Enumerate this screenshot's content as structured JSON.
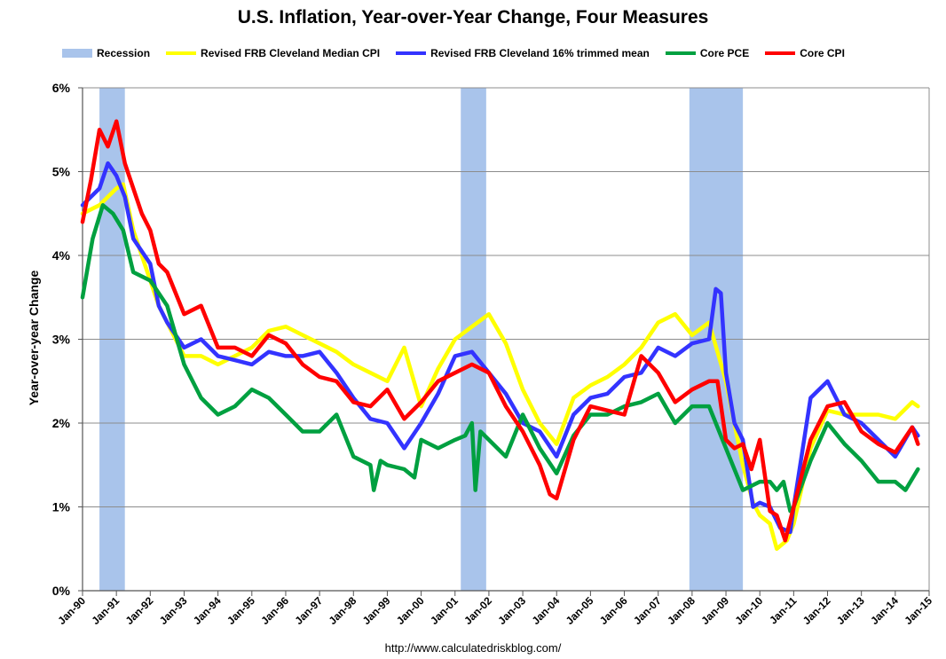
{
  "chart_data": {
    "type": "line",
    "title": "U.S. Inflation, Year-over-Year Change, Four Measures",
    "ylabel": "Year-over-year Change",
    "xlabel": "",
    "source": "http://www.calculatedriskblog.com/",
    "x_range": [
      1990.0,
      2015.0
    ],
    "ylim": [
      0,
      6
    ],
    "y_ticks": [
      "0%",
      "1%",
      "2%",
      "3%",
      "4%",
      "5%",
      "6%"
    ],
    "x_ticks": [
      "Jan-90",
      "Jan-91",
      "Jan-92",
      "Jan-93",
      "Jan-94",
      "Jan-95",
      "Jan-96",
      "Jan-97",
      "Jan-98",
      "Jan-99",
      "Jan-00",
      "Jan-01",
      "Jan-02",
      "Jan-03",
      "Jan-04",
      "Jan-05",
      "Jan-06",
      "Jan-07",
      "Jan-08",
      "Jan-09",
      "Jan-10",
      "Jan-11",
      "Jan-12",
      "Jan-13",
      "Jan-14",
      "Jan-15"
    ],
    "grid": true,
    "legend_position": "top",
    "recession": {
      "name": "Recession",
      "color": "#a9c4eb",
      "periods": [
        [
          1990.5,
          1991.25
        ],
        [
          2001.17,
          2001.92
        ],
        [
          2007.92,
          2009.5
        ]
      ]
    },
    "series": [
      {
        "name": "Revised FRB Cleveland Median CPI",
        "color": "#ffff00",
        "x": [
          1990.0,
          1990.5,
          1991.0,
          1991.2,
          1991.5,
          1992.0,
          1992.25,
          1992.5,
          1992.75,
          1993.0,
          1993.5,
          1994.0,
          1994.5,
          1995.0,
          1995.5,
          1996.0,
          1996.5,
          1997.0,
          1997.5,
          1998.0,
          1998.5,
          1999.0,
          1999.5,
          2000.0,
          2000.5,
          2001.0,
          2001.5,
          2002.0,
          2002.5,
          2003.0,
          2003.5,
          2004.0,
          2004.5,
          2005.0,
          2005.5,
          2006.0,
          2006.5,
          2007.0,
          2007.5,
          2008.0,
          2008.5,
          2009.0,
          2009.5,
          2009.8,
          2010.0,
          2010.3,
          2010.5,
          2010.8,
          2011.0,
          2011.5,
          2012.0,
          2012.5,
          2013.0,
          2013.5,
          2014.0,
          2014.5,
          2014.67
        ],
        "y": [
          4.5,
          4.6,
          4.8,
          4.85,
          4.3,
          3.7,
          3.4,
          3.2,
          3.0,
          2.8,
          2.8,
          2.7,
          2.8,
          2.9,
          3.1,
          3.15,
          3.05,
          2.95,
          2.85,
          2.7,
          2.6,
          2.5,
          2.9,
          2.2,
          2.65,
          3.0,
          3.15,
          3.3,
          2.95,
          2.4,
          2.0,
          1.75,
          2.3,
          2.45,
          2.55,
          2.7,
          2.9,
          3.2,
          3.3,
          3.05,
          3.2,
          2.5,
          1.5,
          1.05,
          0.9,
          0.8,
          0.5,
          0.6,
          0.8,
          1.7,
          2.15,
          2.1,
          2.1,
          2.1,
          2.05,
          2.25,
          2.2
        ]
      },
      {
        "name": "Revised FRB Cleveland 16% trimmed mean",
        "color": "#3333ff",
        "x": [
          1990.0,
          1990.5,
          1990.75,
          1991.0,
          1991.25,
          1991.5,
          1992.0,
          1992.25,
          1992.5,
          1993.0,
          1993.5,
          1994.0,
          1994.5,
          1995.0,
          1995.5,
          1996.0,
          1996.5,
          1997.0,
          1997.5,
          1998.0,
          1998.5,
          1999.0,
          1999.5,
          2000.0,
          2000.5,
          2001.0,
          2001.5,
          2002.0,
          2002.5,
          2003.0,
          2003.5,
          2004.0,
          2004.5,
          2005.0,
          2005.5,
          2006.0,
          2006.5,
          2007.0,
          2007.5,
          2008.0,
          2008.5,
          2008.7,
          2008.85,
          2009.0,
          2009.25,
          2009.5,
          2009.8,
          2010.0,
          2010.3,
          2010.6,
          2010.9,
          2011.0,
          2011.5,
          2012.0,
          2012.5,
          2013.0,
          2013.5,
          2014.0,
          2014.5,
          2014.67
        ],
        "y": [
          4.6,
          4.8,
          5.1,
          4.95,
          4.7,
          4.2,
          3.9,
          3.4,
          3.2,
          2.9,
          3.0,
          2.8,
          2.75,
          2.7,
          2.85,
          2.8,
          2.8,
          2.85,
          2.6,
          2.3,
          2.05,
          2.0,
          1.7,
          2.0,
          2.35,
          2.8,
          2.85,
          2.6,
          2.35,
          2.0,
          1.9,
          1.6,
          2.1,
          2.3,
          2.35,
          2.55,
          2.6,
          2.9,
          2.8,
          2.95,
          3.0,
          3.6,
          3.55,
          2.6,
          2.0,
          1.8,
          1.0,
          1.05,
          1.0,
          0.75,
          0.7,
          1.0,
          2.3,
          2.5,
          2.1,
          2.0,
          1.8,
          1.6,
          1.95,
          1.85
        ]
      },
      {
        "name": "Core PCE",
        "color": "#00a040",
        "x": [
          1990.0,
          1990.3,
          1990.6,
          1990.9,
          1991.2,
          1991.5,
          1992.0,
          1992.5,
          1993.0,
          1993.5,
          1994.0,
          1994.5,
          1995.0,
          1995.5,
          1996.0,
          1996.5,
          1997.0,
          1997.5,
          1998.0,
          1998.5,
          1998.6,
          1998.8,
          1999.0,
          1999.5,
          1999.8,
          2000.0,
          2000.5,
          2001.0,
          2001.3,
          2001.5,
          2001.6,
          2001.75,
          2002.0,
          2002.5,
          2003.0,
          2003.5,
          2004.0,
          2004.5,
          2005.0,
          2005.5,
          2006.0,
          2006.5,
          2007.0,
          2007.5,
          2008.0,
          2008.5,
          2009.0,
          2009.5,
          2010.0,
          2010.3,
          2010.5,
          2010.7,
          2010.9,
          2011.0,
          2011.5,
          2012.0,
          2012.5,
          2013.0,
          2013.5,
          2014.0,
          2014.3,
          2014.67
        ],
        "y": [
          3.5,
          4.2,
          4.6,
          4.5,
          4.3,
          3.8,
          3.7,
          3.4,
          2.7,
          2.3,
          2.1,
          2.2,
          2.4,
          2.3,
          2.1,
          1.9,
          1.9,
          2.1,
          1.6,
          1.5,
          1.2,
          1.55,
          1.5,
          1.45,
          1.35,
          1.8,
          1.7,
          1.8,
          1.85,
          2.0,
          1.2,
          1.9,
          1.8,
          1.6,
          2.1,
          1.7,
          1.4,
          1.85,
          2.1,
          2.1,
          2.2,
          2.25,
          2.35,
          2.0,
          2.2,
          2.2,
          1.7,
          1.2,
          1.3,
          1.3,
          1.2,
          1.3,
          0.95,
          1.0,
          1.55,
          2.0,
          1.75,
          1.55,
          1.3,
          1.3,
          1.2,
          1.45
        ]
      },
      {
        "name": "Core CPI",
        "color": "#ff0000",
        "x": [
          1990.0,
          1990.25,
          1990.5,
          1990.75,
          1991.0,
          1991.25,
          1991.5,
          1991.75,
          1992.0,
          1992.25,
          1992.5,
          1993.0,
          1993.5,
          1994.0,
          1994.5,
          1995.0,
          1995.5,
          1996.0,
          1996.5,
          1997.0,
          1997.5,
          1998.0,
          1998.5,
          1999.0,
          1999.5,
          2000.0,
          2000.5,
          2001.0,
          2001.5,
          2002.0,
          2002.5,
          2003.0,
          2003.5,
          2003.8,
          2004.0,
          2004.5,
          2005.0,
          2005.5,
          2006.0,
          2006.5,
          2007.0,
          2007.5,
          2008.0,
          2008.5,
          2008.75,
          2009.0,
          2009.25,
          2009.5,
          2009.75,
          2010.0,
          2010.3,
          2010.5,
          2010.75,
          2011.0,
          2011.5,
          2012.0,
          2012.5,
          2013.0,
          2013.5,
          2014.0,
          2014.5,
          2014.67
        ],
        "y": [
          4.4,
          4.9,
          5.5,
          5.3,
          5.6,
          5.1,
          4.8,
          4.5,
          4.3,
          3.9,
          3.8,
          3.3,
          3.4,
          2.9,
          2.9,
          2.8,
          3.05,
          2.95,
          2.7,
          2.55,
          2.5,
          2.25,
          2.2,
          2.4,
          2.05,
          2.25,
          2.5,
          2.6,
          2.7,
          2.6,
          2.2,
          1.9,
          1.5,
          1.15,
          1.1,
          1.8,
          2.2,
          2.15,
          2.1,
          2.8,
          2.6,
          2.25,
          2.4,
          2.5,
          2.5,
          1.8,
          1.7,
          1.75,
          1.45,
          1.8,
          0.95,
          0.9,
          0.6,
          1.0,
          1.8,
          2.2,
          2.25,
          1.9,
          1.75,
          1.65,
          1.95,
          1.75
        ]
      }
    ]
  }
}
